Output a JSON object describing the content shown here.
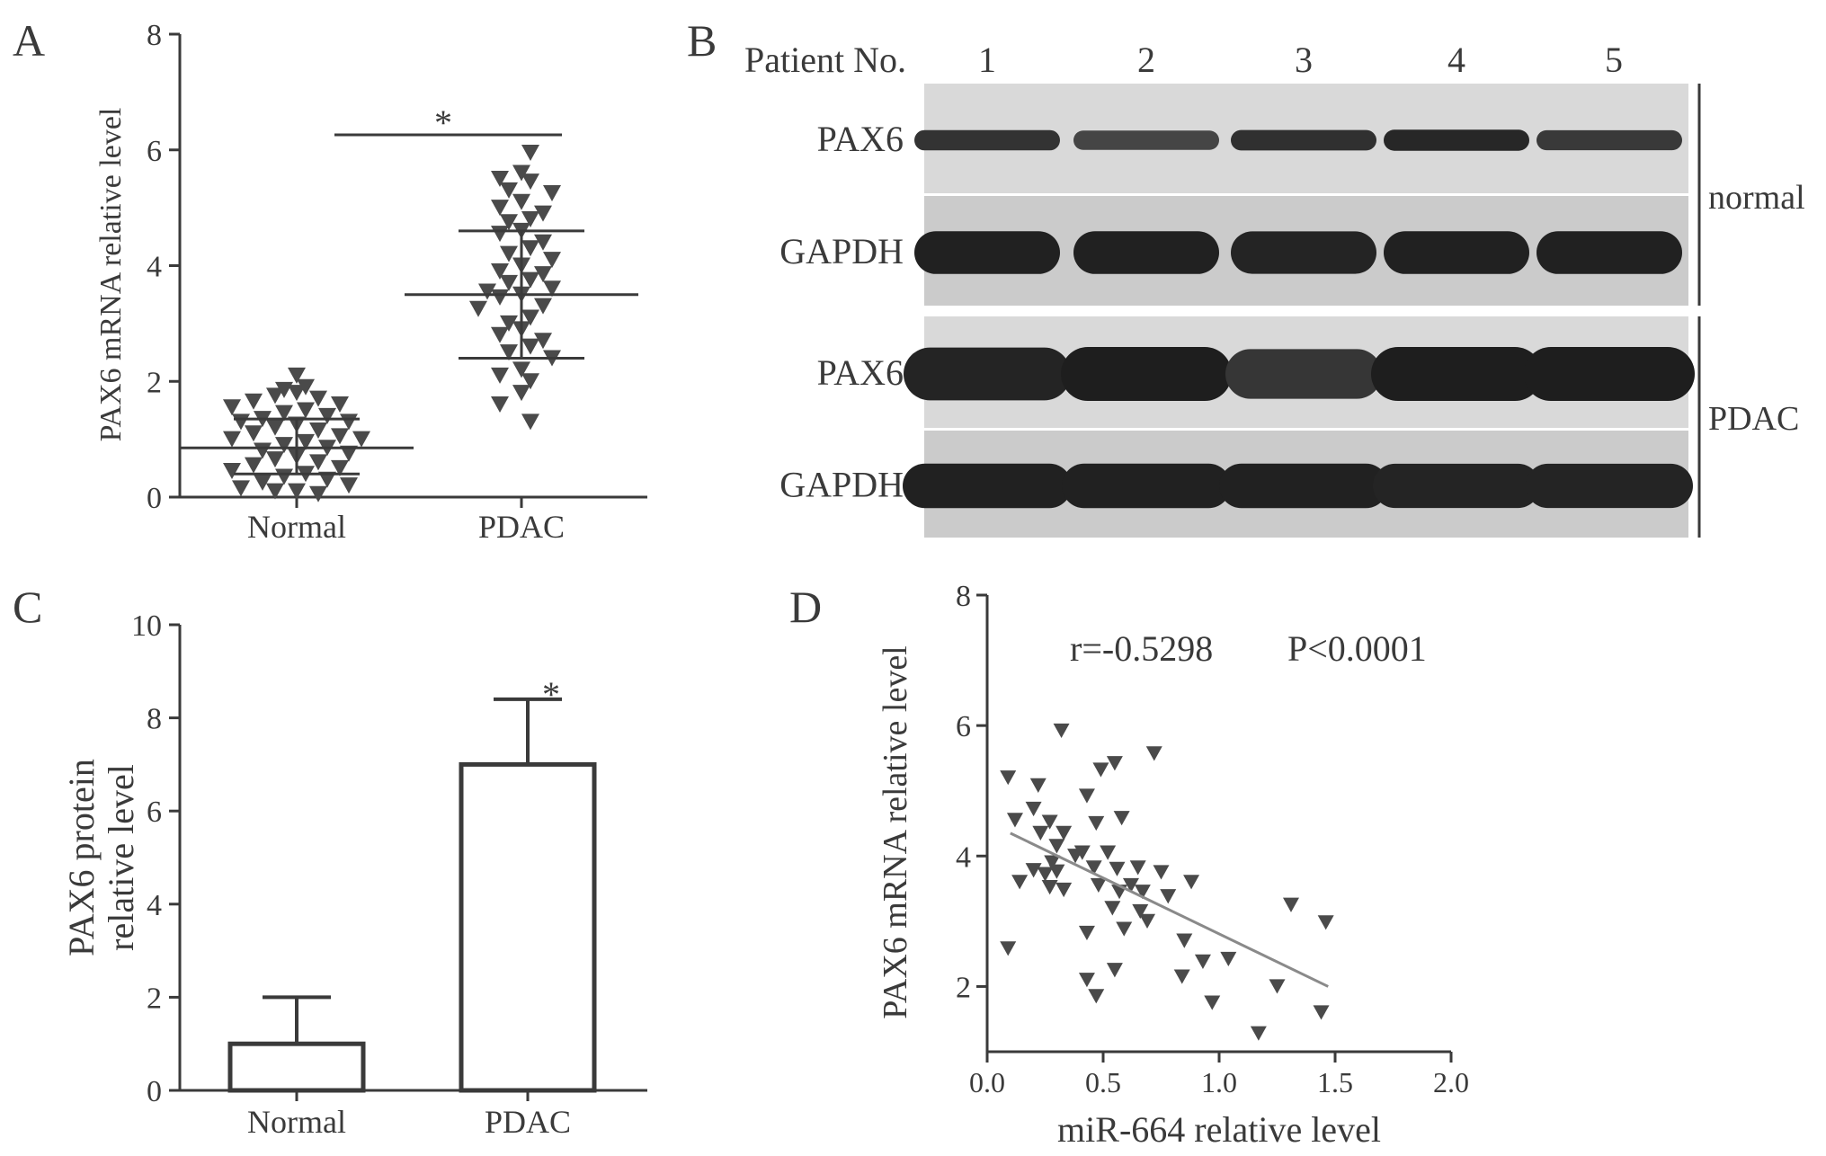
{
  "panel_letters": {
    "a": "A",
    "b": "B",
    "c": "C",
    "d": "D"
  },
  "colors": {
    "ink": "#3a3a3a",
    "marker": "#4a4a4a",
    "blot_bg": "#d4d4d4",
    "band": "#2a2a2a"
  },
  "blot": {
    "patient_label": "Patient No.",
    "patients": [
      "1",
      "2",
      "3",
      "4",
      "5"
    ],
    "rows": [
      {
        "label": "PAX6",
        "intensity": [
          0.65,
          0.35,
          0.7,
          0.85,
          0.55
        ]
      },
      {
        "label": "GAPDH",
        "intensity": [
          0.95,
          0.95,
          0.9,
          0.95,
          0.95
        ]
      },
      {
        "label": "PAX6",
        "intensity": [
          0.9,
          1.0,
          0.6,
          1.0,
          1.0
        ]
      },
      {
        "label": "GAPDH",
        "intensity": [
          0.95,
          0.95,
          0.95,
          0.9,
          0.9
        ]
      }
    ],
    "groups": [
      "normal",
      "PDAC"
    ]
  },
  "chart_data": [
    {
      "type": "scatter",
      "panel": "A",
      "categories": [
        "Normal",
        "PDAC"
      ],
      "ylabel": "PAX6 mRNA relative level",
      "ylim": [
        0,
        8
      ],
      "yticks": [
        0,
        2,
        4,
        6,
        8
      ],
      "marker": "triangle-down",
      "significance": "*",
      "summary": [
        {
          "category": "Normal",
          "mean": 0.85,
          "sd_low": 0.4,
          "sd_high": 1.35
        },
        {
          "category": "PDAC",
          "mean": 3.5,
          "sd_low": 2.4,
          "sd_high": 4.6
        }
      ],
      "series": [
        {
          "category": "Normal",
          "values": [
            2.1,
            1.9,
            1.85,
            1.8,
            1.75,
            1.7,
            1.65,
            1.6,
            1.55,
            1.5,
            1.45,
            1.4,
            1.35,
            1.3,
            1.3,
            1.25,
            1.2,
            1.15,
            1.1,
            1.05,
            1.0,
            1.0,
            0.95,
            0.9,
            0.85,
            0.8,
            0.75,
            0.7,
            0.65,
            0.6,
            0.55,
            0.5,
            0.45,
            0.4,
            0.35,
            0.3,
            0.25,
            0.2,
            0.15,
            0.1,
            0.1,
            0.05
          ]
        },
        {
          "category": "PDAC",
          "values": [
            5.95,
            5.6,
            5.5,
            5.45,
            5.3,
            5.25,
            5.1,
            5.0,
            4.9,
            4.8,
            4.75,
            4.6,
            4.55,
            4.4,
            4.3,
            4.2,
            4.1,
            4.0,
            3.9,
            3.85,
            3.75,
            3.7,
            3.6,
            3.55,
            3.5,
            3.45,
            3.3,
            3.25,
            3.1,
            3.0,
            2.9,
            2.8,
            2.7,
            2.6,
            2.5,
            2.4,
            2.2,
            2.1,
            2.0,
            1.8,
            1.6,
            1.3
          ]
        }
      ]
    },
    {
      "type": "bar",
      "panel": "C",
      "categories": [
        "Normal",
        "PDAC"
      ],
      "values": [
        1.0,
        7.0
      ],
      "errors": [
        1.0,
        1.4
      ],
      "ylabel": "PAX6 protein\nrelative level",
      "ylim": [
        0,
        10
      ],
      "yticks": [
        0,
        2,
        4,
        6,
        8,
        10
      ],
      "significance": "*"
    },
    {
      "type": "scatter",
      "panel": "D",
      "xlabel": "miR-664 relative level",
      "ylabel": "PAX6 mRNA relative level",
      "xlim": [
        0.0,
        2.0
      ],
      "ylim": [
        1,
        8
      ],
      "xticks": [
        "0.0",
        "0.5",
        "1.0",
        "1.5",
        "2.0"
      ],
      "yticks": [
        2,
        4,
        6,
        8
      ],
      "annotation_r": "r=-0.5298",
      "annotation_p": "P<0.0001",
      "marker": "triangle-down",
      "trendline": {
        "x": [
          0.1,
          1.47
        ],
        "y": [
          4.35,
          2.0
        ]
      },
      "points": [
        [
          0.32,
          5.92
        ],
        [
          0.72,
          5.57
        ],
        [
          0.55,
          5.42
        ],
        [
          0.49,
          5.32
        ],
        [
          0.09,
          5.2
        ],
        [
          0.22,
          5.08
        ],
        [
          0.43,
          4.92
        ],
        [
          0.2,
          4.72
        ],
        [
          0.58,
          4.58
        ],
        [
          0.12,
          4.55
        ],
        [
          0.27,
          4.52
        ],
        [
          0.47,
          4.5
        ],
        [
          0.23,
          4.35
        ],
        [
          0.33,
          4.35
        ],
        [
          0.3,
          4.15
        ],
        [
          0.41,
          4.05
        ],
        [
          0.52,
          4.05
        ],
        [
          0.28,
          3.9
        ],
        [
          0.38,
          4.0
        ],
        [
          0.2,
          3.78
        ],
        [
          0.25,
          3.72
        ],
        [
          0.3,
          3.76
        ],
        [
          0.46,
          3.82
        ],
        [
          0.56,
          3.8
        ],
        [
          0.65,
          3.82
        ],
        [
          0.75,
          3.75
        ],
        [
          0.14,
          3.6
        ],
        [
          0.88,
          3.6
        ],
        [
          0.27,
          3.52
        ],
        [
          0.33,
          3.48
        ],
        [
          0.48,
          3.55
        ],
        [
          0.62,
          3.55
        ],
        [
          0.57,
          3.45
        ],
        [
          0.67,
          3.45
        ],
        [
          0.78,
          3.38
        ],
        [
          0.54,
          3.2
        ],
        [
          0.66,
          3.15
        ],
        [
          0.59,
          2.88
        ],
        [
          0.69,
          3.0
        ],
        [
          0.43,
          2.82
        ],
        [
          0.09,
          2.58
        ],
        [
          0.85,
          2.7
        ],
        [
          0.93,
          2.38
        ],
        [
          1.04,
          2.42
        ],
        [
          0.55,
          2.25
        ],
        [
          0.43,
          2.1
        ],
        [
          0.84,
          2.15
        ],
        [
          1.25,
          2.0
        ],
        [
          0.47,
          1.85
        ],
        [
          0.97,
          1.75
        ],
        [
          1.31,
          3.25
        ],
        [
          1.46,
          2.98
        ],
        [
          1.44,
          1.6
        ],
        [
          1.17,
          1.28
        ]
      ]
    }
  ]
}
